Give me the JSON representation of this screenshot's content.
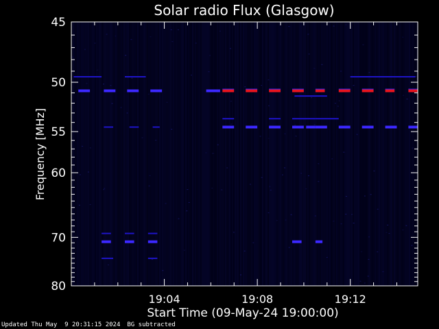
{
  "chart_data": {
    "type": "heatmap",
    "title": "Solar radio Flux (Glasgow)",
    "xlabel": "Start Time (09-May-24 19:00:00)",
    "ylabel": "Frequency [MHz]",
    "x_unit": "minutes after 19:00",
    "xlim": [
      0,
      14.9
    ],
    "ylim": [
      45,
      80
    ],
    "y_scale": "reciprocal",
    "x_ticks": [
      {
        "value": 4,
        "label": "19:04"
      },
      {
        "value": 8,
        "label": "19:08"
      },
      {
        "value": 12,
        "label": "19:12"
      }
    ],
    "y_ticks": [
      {
        "value": 45,
        "label": "45"
      },
      {
        "value": 50,
        "label": "50"
      },
      {
        "value": 55,
        "label": "55"
      },
      {
        "value": 60,
        "label": "60"
      },
      {
        "value": 70,
        "label": "70"
      },
      {
        "value": 80,
        "label": "80"
      }
    ],
    "background_color": "#000014",
    "colors": {
      "low": "#1e14c8",
      "mid": "#3c28ff",
      "high": "#e8141e"
    },
    "bands": [
      {
        "freq": 49.5,
        "intensity": 0.35,
        "segments": [
          [
            0.1,
            1.3
          ],
          [
            2.3,
            3.2
          ],
          [
            12.0,
            14.8
          ]
        ]
      },
      {
        "freq": 50.8,
        "intensity": 0.7,
        "segments": [
          [
            0.3,
            0.8
          ],
          [
            1.4,
            1.9
          ],
          [
            2.4,
            2.9
          ],
          [
            3.4,
            3.9
          ],
          [
            5.8,
            6.4
          ]
        ]
      },
      {
        "freq": 50.8,
        "intensity": 1.0,
        "segments": [
          [
            6.5,
            7.0
          ],
          [
            7.5,
            8.0
          ],
          [
            8.5,
            9.0
          ],
          [
            9.5,
            10.0
          ],
          [
            10.5,
            10.9
          ],
          [
            11.5,
            12.0
          ],
          [
            12.5,
            13.0
          ],
          [
            13.5,
            13.9
          ],
          [
            14.5,
            14.9
          ]
        ]
      },
      {
        "freq": 51.3,
        "intensity": 0.4,
        "segments": [
          [
            9.6,
            11.0
          ]
        ]
      },
      {
        "freq": 53.6,
        "intensity": 0.3,
        "segments": [
          [
            6.5,
            7.0
          ],
          [
            8.5,
            9.0
          ],
          [
            9.5,
            10.5
          ],
          [
            10.5,
            11.5
          ]
        ]
      },
      {
        "freq": 54.5,
        "intensity": 0.75,
        "segments": [
          [
            6.5,
            7.0
          ],
          [
            7.5,
            8.0
          ],
          [
            8.5,
            9.0
          ],
          [
            9.5,
            10.0
          ],
          [
            10.1,
            10.5
          ],
          [
            10.5,
            11.0
          ],
          [
            11.5,
            12.0
          ],
          [
            12.5,
            13.0
          ],
          [
            13.5,
            14.0
          ],
          [
            14.5,
            14.9
          ]
        ]
      },
      {
        "freq": 54.5,
        "intensity": 0.35,
        "segments": [
          [
            1.4,
            1.8
          ],
          [
            2.5,
            2.9
          ],
          [
            3.5,
            3.8
          ]
        ]
      },
      {
        "freq": 69.3,
        "intensity": 0.45,
        "segments": [
          [
            1.3,
            1.7
          ],
          [
            2.3,
            2.7
          ],
          [
            3.3,
            3.7
          ]
        ]
      },
      {
        "freq": 70.8,
        "intensity": 0.7,
        "segments": [
          [
            1.3,
            1.7
          ],
          [
            2.3,
            2.7
          ],
          [
            3.3,
            3.7
          ],
          [
            9.5,
            9.9
          ],
          [
            10.5,
            10.8
          ]
        ]
      },
      {
        "freq": 74.0,
        "intensity": 0.3,
        "segments": [
          [
            1.3,
            1.8
          ],
          [
            3.3,
            3.7
          ]
        ]
      }
    ]
  },
  "footer": {
    "updated": "Updated Thu May  9 20:31:15 2024",
    "bg_note": "BG subtracted"
  }
}
